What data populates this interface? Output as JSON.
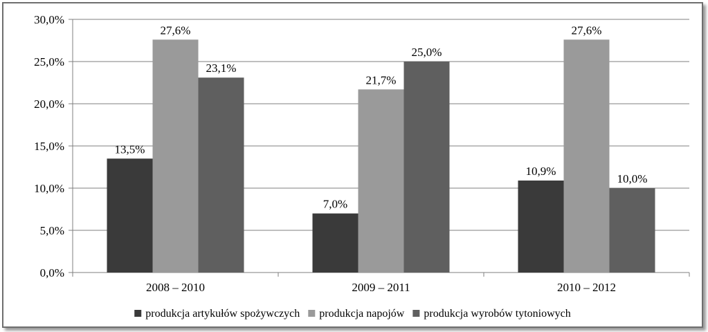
{
  "chart_data": {
    "type": "bar",
    "categories": [
      "2008 – 2010",
      "2009 – 2011",
      "2010 – 2012"
    ],
    "series": [
      {
        "name": "produkcja artykułów spożywczych",
        "values": [
          13.5,
          7.0,
          10.9
        ],
        "labels": [
          "13,5%",
          "7,0%",
          "10,9%"
        ],
        "color": "#3a3a3a"
      },
      {
        "name": "produkcja napojów",
        "values": [
          27.6,
          21.7,
          27.6
        ],
        "labels": [
          "27,6%",
          "21,7%",
          "27,6%"
        ],
        "color": "#9a9a9a"
      },
      {
        "name": "produkcja wyrobów tytoniowych",
        "values": [
          23.1,
          25.0,
          10.0
        ],
        "labels": [
          "23,1%",
          "25,0%",
          "10,0%"
        ],
        "color": "#5f5f5f"
      }
    ],
    "y_ticks": [
      "0,0%",
      "5,0%",
      "10,0%",
      "15,0%",
      "20,0%",
      "25,0%",
      "30,0%"
    ],
    "ylim": [
      0,
      30
    ],
    "grid": true,
    "legend_position": "bottom",
    "title": "",
    "xlabel": "",
    "ylabel": ""
  }
}
